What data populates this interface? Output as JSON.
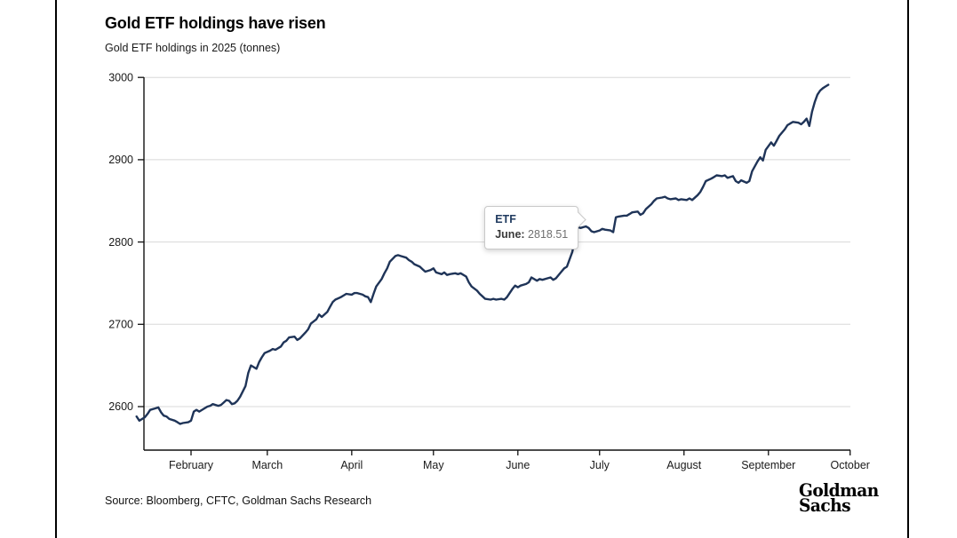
{
  "header": {
    "title": "Gold ETF holdings have risen",
    "subtitle": "Gold ETF holdings in 2025 (tonnes)"
  },
  "tooltip": {
    "series": "ETF",
    "label": "June:",
    "value": "2818.51"
  },
  "footer": {
    "source": "Source: Bloomberg, CFTC, Goldman Sachs Research",
    "logo_line1": "Goldman",
    "logo_line2": "Sachs"
  },
  "colors": {
    "line": "#1f3458",
    "grid": "#d8d8d8",
    "axis": "#111111",
    "tick_label": "#1a1a1a",
    "tooltip_series": "#1f3a5f"
  },
  "chart_data": {
    "type": "line",
    "title": "Gold ETF holdings have risen",
    "subtitle": "Gold ETF holdings in 2025 (tonnes)",
    "xlabel": "",
    "ylabel": "tonnes",
    "ylim": [
      2547,
      3005
    ],
    "yticks": [
      2600,
      2700,
      2800,
      2900,
      3000
    ],
    "grid": true,
    "legend_position": "none",
    "x_unit": "day_of_year_2025",
    "xticks": [
      {
        "label": "February",
        "day": 32
      },
      {
        "label": "March",
        "day": 60
      },
      {
        "label": "April",
        "day": 91
      },
      {
        "label": "May",
        "day": 121
      },
      {
        "label": "June",
        "day": 152
      },
      {
        "label": "July",
        "day": 182
      },
      {
        "label": "August",
        "day": 213
      },
      {
        "label": "September",
        "day": 244
      },
      {
        "label": "October",
        "day": 274
      }
    ],
    "annotation": {
      "series": "ETF",
      "month": "June",
      "day": 174,
      "value": 2818.51
    },
    "series": [
      {
        "name": "ETF",
        "points": [
          [
            12,
            2588
          ],
          [
            13,
            2583
          ],
          [
            15,
            2587
          ],
          [
            16,
            2591
          ],
          [
            17,
            2596
          ],
          [
            19,
            2598
          ],
          [
            20,
            2599
          ],
          [
            21,
            2593
          ],
          [
            22,
            2589
          ],
          [
            23,
            2588
          ],
          [
            24,
            2585
          ],
          [
            26,
            2583
          ],
          [
            27,
            2581
          ],
          [
            28,
            2579
          ],
          [
            29,
            2580
          ],
          [
            31,
            2581
          ],
          [
            32,
            2583
          ],
          [
            33,
            2594
          ],
          [
            34,
            2596
          ],
          [
            35,
            2594
          ],
          [
            37,
            2598
          ],
          [
            38,
            2600
          ],
          [
            39,
            2601
          ],
          [
            40,
            2603
          ],
          [
            42,
            2601
          ],
          [
            43,
            2602
          ],
          [
            44,
            2605
          ],
          [
            45,
            2608
          ],
          [
            46,
            2607
          ],
          [
            47,
            2603
          ],
          [
            48,
            2604
          ],
          [
            49,
            2607
          ],
          [
            50,
            2612
          ],
          [
            52,
            2625
          ],
          [
            53,
            2641
          ],
          [
            54,
            2650
          ],
          [
            56,
            2646
          ],
          [
            57,
            2654
          ],
          [
            58,
            2660
          ],
          [
            59,
            2665
          ],
          [
            61,
            2668
          ],
          [
            62,
            2670
          ],
          [
            63,
            2669
          ],
          [
            65,
            2673
          ],
          [
            66,
            2678
          ],
          [
            67,
            2680
          ],
          [
            68,
            2684
          ],
          [
            70,
            2685
          ],
          [
            71,
            2681
          ],
          [
            72,
            2683
          ],
          [
            74,
            2690
          ],
          [
            75,
            2694
          ],
          [
            76,
            2701
          ],
          [
            78,
            2706
          ],
          [
            79,
            2712
          ],
          [
            80,
            2709
          ],
          [
            82,
            2715
          ],
          [
            83,
            2721
          ],
          [
            84,
            2727
          ],
          [
            85,
            2730
          ],
          [
            87,
            2733
          ],
          [
            88,
            2735
          ],
          [
            89,
            2737
          ],
          [
            91,
            2736
          ],
          [
            92,
            2738
          ],
          [
            93,
            2738
          ],
          [
            95,
            2736
          ],
          [
            96,
            2734
          ],
          [
            97,
            2733
          ],
          [
            98,
            2727
          ],
          [
            99,
            2737
          ],
          [
            100,
            2746
          ],
          [
            102,
            2755
          ],
          [
            103,
            2762
          ],
          [
            104,
            2768
          ],
          [
            105,
            2776
          ],
          [
            107,
            2783
          ],
          [
            108,
            2784
          ],
          [
            109,
            2783
          ],
          [
            111,
            2781
          ],
          [
            112,
            2778
          ],
          [
            113,
            2776
          ],
          [
            114,
            2773
          ],
          [
            116,
            2770
          ],
          [
            117,
            2767
          ],
          [
            118,
            2764
          ],
          [
            120,
            2766
          ],
          [
            121,
            2768
          ],
          [
            122,
            2763
          ],
          [
            124,
            2761
          ],
          [
            125,
            2763
          ],
          [
            126,
            2760
          ],
          [
            127,
            2761
          ],
          [
            129,
            2762
          ],
          [
            130,
            2761
          ],
          [
            131,
            2762
          ],
          [
            133,
            2758
          ],
          [
            134,
            2751
          ],
          [
            135,
            2746
          ],
          [
            137,
            2741
          ],
          [
            138,
            2737
          ],
          [
            139,
            2734
          ],
          [
            140,
            2731
          ],
          [
            142,
            2730
          ],
          [
            143,
            2731
          ],
          [
            144,
            2730
          ],
          [
            146,
            2731
          ],
          [
            147,
            2730
          ],
          [
            148,
            2733
          ],
          [
            150,
            2743
          ],
          [
            151,
            2747
          ],
          [
            152,
            2745
          ],
          [
            153,
            2747
          ],
          [
            155,
            2749
          ],
          [
            156,
            2751
          ],
          [
            157,
            2757
          ],
          [
            159,
            2753
          ],
          [
            160,
            2755
          ],
          [
            161,
            2754
          ],
          [
            163,
            2756
          ],
          [
            164,
            2757
          ],
          [
            165,
            2754
          ],
          [
            166,
            2756
          ],
          [
            168,
            2764
          ],
          [
            169,
            2768
          ],
          [
            170,
            2770
          ],
          [
            172,
            2788
          ],
          [
            173,
            2805
          ],
          [
            174,
            2818.51
          ],
          [
            175,
            2817
          ],
          [
            177,
            2819
          ],
          [
            178,
            2817
          ],
          [
            179,
            2813
          ],
          [
            180,
            2812
          ],
          [
            182,
            2814
          ],
          [
            183,
            2816
          ],
          [
            184,
            2815
          ],
          [
            186,
            2814
          ],
          [
            187,
            2812
          ],
          [
            188,
            2830
          ],
          [
            189,
            2831
          ],
          [
            191,
            2832
          ],
          [
            192,
            2832
          ],
          [
            193,
            2834
          ],
          [
            194,
            2836
          ],
          [
            196,
            2837
          ],
          [
            197,
            2833
          ],
          [
            198,
            2835
          ],
          [
            199,
            2840
          ],
          [
            201,
            2846
          ],
          [
            202,
            2850
          ],
          [
            203,
            2853
          ],
          [
            205,
            2854
          ],
          [
            206,
            2855
          ],
          [
            207,
            2853
          ],
          [
            208,
            2852
          ],
          [
            210,
            2853
          ],
          [
            211,
            2851
          ],
          [
            212,
            2852
          ],
          [
            214,
            2851
          ],
          [
            215,
            2853
          ],
          [
            216,
            2851
          ],
          [
            218,
            2857
          ],
          [
            219,
            2861
          ],
          [
            220,
            2867
          ],
          [
            221,
            2874
          ],
          [
            223,
            2877
          ],
          [
            224,
            2879
          ],
          [
            225,
            2881
          ],
          [
            227,
            2880
          ],
          [
            228,
            2881
          ],
          [
            229,
            2878
          ],
          [
            231,
            2880
          ],
          [
            232,
            2874
          ],
          [
            233,
            2872
          ],
          [
            234,
            2875
          ],
          [
            236,
            2872
          ],
          [
            237,
            2874
          ],
          [
            238,
            2886
          ],
          [
            240,
            2898
          ],
          [
            241,
            2903
          ],
          [
            242,
            2899
          ],
          [
            243,
            2912
          ],
          [
            245,
            2921
          ],
          [
            246,
            2917
          ],
          [
            247,
            2923
          ],
          [
            248,
            2929
          ],
          [
            250,
            2937
          ],
          [
            251,
            2942
          ],
          [
            252,
            2944
          ],
          [
            253,
            2946
          ],
          [
            255,
            2945
          ],
          [
            256,
            2943
          ],
          [
            257,
            2946
          ],
          [
            258,
            2950
          ],
          [
            259,
            2941
          ],
          [
            260,
            2958
          ],
          [
            261,
            2970
          ],
          [
            262,
            2979
          ],
          [
            263,
            2984
          ],
          [
            264,
            2987
          ],
          [
            265,
            2989
          ],
          [
            266,
            2991
          ]
        ]
      }
    ]
  }
}
